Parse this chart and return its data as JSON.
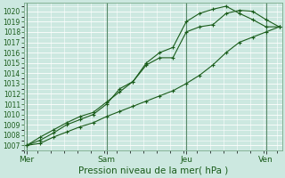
{
  "xlabel": "Pression niveau de la mer( hPa )",
  "bg_color": "#cce8e0",
  "grid_color": "#ffffff",
  "line_color": "#1a5c1a",
  "vline_color": "#5a8a6a",
  "ylim": [
    1006.5,
    1020.8
  ],
  "xlim": [
    -0.1,
    9.6
  ],
  "day_labels": [
    "Mer",
    "Sam",
    "Jeu",
    "Ven"
  ],
  "day_positions": [
    0,
    3,
    6,
    9
  ],
  "series1_x": [
    0,
    0.5,
    1.0,
    1.5,
    2.0,
    2.5,
    3.0,
    3.5,
    4.0,
    4.5,
    5.0,
    5.5,
    6.0,
    6.5,
    7.0,
    7.5,
    8.0,
    8.5,
    9.0,
    9.5
  ],
  "series1_y": [
    1007.0,
    1007.5,
    1008.2,
    1009.0,
    1009.5,
    1010.0,
    1011.0,
    1012.5,
    1013.2,
    1014.8,
    1015.5,
    1015.5,
    1018.0,
    1018.5,
    1018.7,
    1019.8,
    1020.1,
    1020.0,
    1019.2,
    1018.5
  ],
  "series2_x": [
    0,
    0.5,
    1.0,
    1.5,
    2.0,
    2.5,
    3.0,
    3.5,
    4.0,
    4.5,
    5.0,
    5.5,
    6.0,
    6.5,
    7.0,
    7.5,
    8.0,
    8.5,
    9.0,
    9.5
  ],
  "series2_y": [
    1007.0,
    1007.8,
    1008.5,
    1009.2,
    1009.8,
    1010.2,
    1011.2,
    1012.2,
    1013.2,
    1015.0,
    1016.0,
    1016.5,
    1019.0,
    1019.8,
    1020.2,
    1020.5,
    1019.8,
    1019.2,
    1018.5,
    1018.5
  ],
  "series3_x": [
    0,
    0.5,
    1.0,
    1.5,
    2.0,
    2.5,
    3.0,
    3.5,
    4.0,
    4.5,
    5.0,
    5.5,
    6.0,
    6.5,
    7.0,
    7.5,
    8.0,
    8.5,
    9.0,
    9.5
  ],
  "series3_y": [
    1007.0,
    1007.2,
    1007.8,
    1008.3,
    1008.8,
    1009.2,
    1009.8,
    1010.3,
    1010.8,
    1011.3,
    1011.8,
    1012.3,
    1013.0,
    1013.8,
    1014.8,
    1016.0,
    1017.0,
    1017.5,
    1018.0,
    1018.5
  ],
  "yticks": [
    1007,
    1008,
    1009,
    1010,
    1011,
    1012,
    1013,
    1014,
    1015,
    1016,
    1017,
    1018,
    1019,
    1020
  ],
  "minor_x_step": 0.5,
  "xlabel_fontsize": 7.5,
  "ylabel_fontsize": 5.5,
  "xtick_fontsize": 6.5
}
